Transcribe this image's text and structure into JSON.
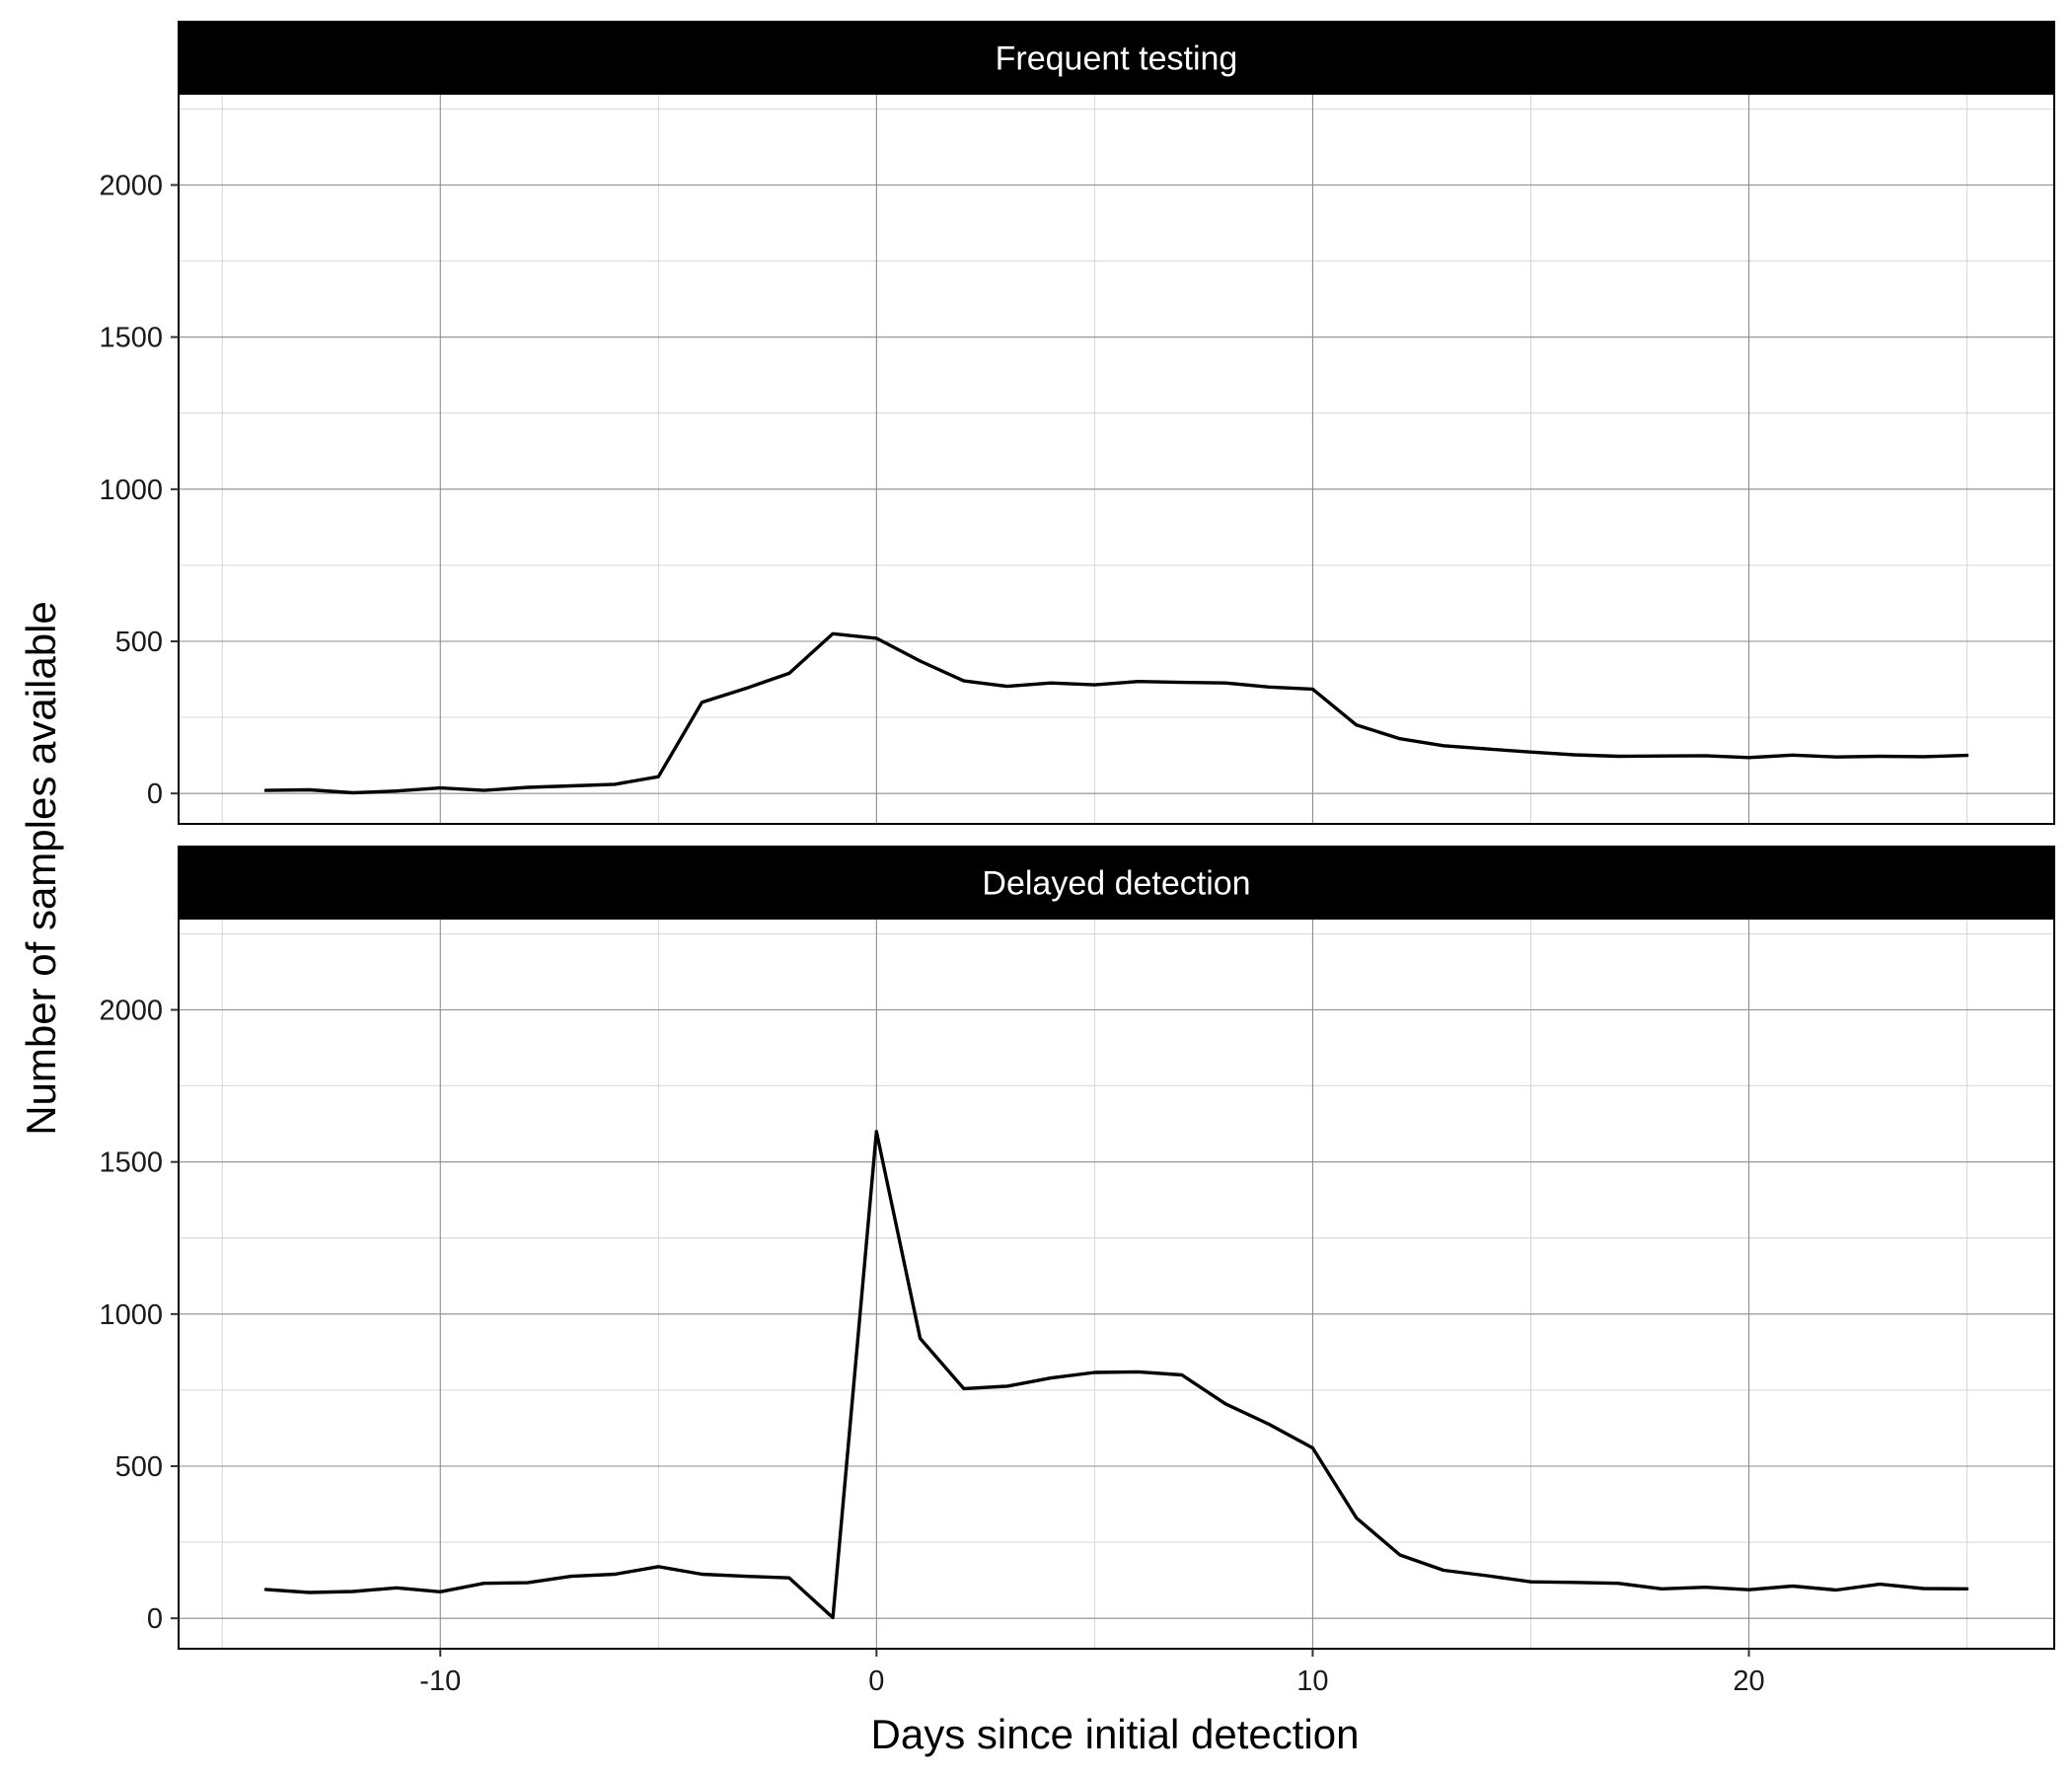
{
  "chart_data": {
    "type": "line",
    "xlabel": "Days since initial detection",
    "ylabel": "Number of samples available",
    "xlim": [
      -16,
      27
    ],
    "ylim": [
      -100,
      2300
    ],
    "x_ticks": [
      -10,
      0,
      10,
      20
    ],
    "y_ticks": [
      0,
      500,
      1000,
      1500,
      2000
    ],
    "grid": true,
    "x": [
      -14,
      -13,
      -12,
      -11,
      -10,
      -9,
      -8,
      -7,
      -6,
      -5,
      -4,
      -3,
      -2,
      -1,
      0,
      1,
      2,
      3,
      4,
      5,
      6,
      7,
      8,
      9,
      10,
      11,
      12,
      13,
      14,
      15,
      16,
      17,
      18,
      19,
      20,
      21,
      22,
      23,
      24,
      25
    ],
    "panels": [
      {
        "title": "Frequent testing",
        "values": [
          10,
          12,
          2,
          8,
          18,
          10,
          20,
          25,
          30,
          55,
          300,
          345,
          395,
          525,
          510,
          435,
          370,
          352,
          363,
          357,
          368,
          365,
          363,
          350,
          343,
          225,
          180,
          157,
          146,
          136,
          127,
          122,
          123,
          124,
          118,
          126,
          120,
          122,
          121,
          125
        ]
      },
      {
        "title": "Delayed detection",
        "values": [
          95,
          85,
          88,
          100,
          87,
          115,
          117,
          138,
          145,
          170,
          145,
          138,
          133,
          2,
          1600,
          920,
          755,
          763,
          790,
          808,
          810,
          800,
          705,
          638,
          560,
          330,
          208,
          158,
          140,
          120,
          118,
          115,
          97,
          102,
          94,
          106,
          93,
          112,
          98,
          97
        ]
      }
    ]
  }
}
